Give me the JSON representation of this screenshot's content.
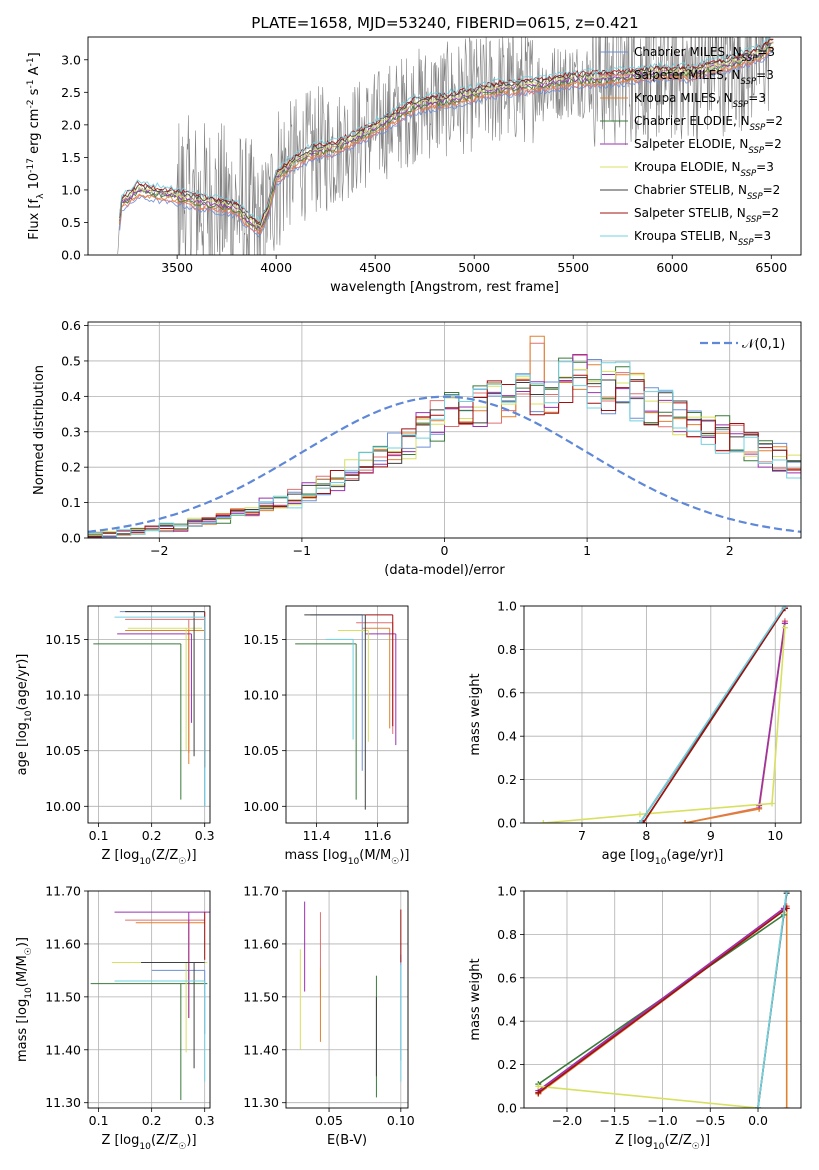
{
  "title": "PLATE=1658, MJD=53240, FIBERID=0615, z=0.421",
  "models": [
    {
      "name": "Chabrier MILES, N$_{SSP}$=3",
      "label": "Chabrier MILES, N",
      "sub": "SSP",
      "tail": "=3",
      "color": "#6b8fd6"
    },
    {
      "name": "Salpeter MILES, N$_{SSP}$=3",
      "label": "Salpeter MILES, N",
      "sub": "SSP",
      "tail": "=3",
      "color": "#e07070"
    },
    {
      "name": "Kroupa MILES, N$_{SSP}$=3",
      "label": "Kroupa MILES, N",
      "sub": "SSP",
      "tail": "=3",
      "color": "#e08030"
    },
    {
      "name": "Chabrier ELODIE, N$_{SSP}$=2",
      "label": "Chabrier ELODIE, N",
      "sub": "SSP",
      "tail": "=2",
      "color": "#3a7a3a"
    },
    {
      "name": "Salpeter ELODIE, N$_{SSP}$=2",
      "label": "Salpeter ELODIE, N",
      "sub": "SSP",
      "tail": "=2",
      "color": "#9b30b0"
    },
    {
      "name": "Kroupa ELODIE, N$_{SSP}$=3",
      "label": "Kroupa ELODIE, N",
      "sub": "SSP",
      "tail": "=3",
      "color": "#d8e060"
    },
    {
      "name": "Chabrier STELIB, N$_{SSP}$=2",
      "label": "Chabrier STELIB, N",
      "sub": "SSP",
      "tail": "=2",
      "color": "#404040"
    },
    {
      "name": "Salpeter STELIB, N$_{SSP}$=2",
      "label": "Salpeter STELIB, N",
      "sub": "SSP",
      "tail": "=2",
      "color": "#a01010"
    },
    {
      "name": "Kroupa STELIB, N$_{SSP}$=3",
      "label": "Kroupa STELIB, N",
      "sub": "SSP",
      "tail": "=3",
      "color": "#70d0e0"
    }
  ],
  "chart_data": [
    {
      "id": "spectrum",
      "type": "line",
      "xlabel": "wavelength [Angstrom, rest frame]",
      "ylabel": "Flux [f$_\\lambda$ 10$^{-17}$ erg cm$^{-2}$ s$^{-1}$ A$^{-1}$]",
      "xlim": [
        3050,
        6650
      ],
      "ylim": [
        0,
        3.35
      ],
      "xticks": [
        3500,
        4000,
        4500,
        5000,
        5500,
        6000,
        6500
      ],
      "yticks": [
        0.0,
        0.5,
        1.0,
        1.5,
        2.0,
        2.5,
        3.0
      ],
      "data_color": "#808080",
      "data_range": [
        3200,
        6500
      ],
      "continuum": [
        [
          3200,
          0.0
        ],
        [
          3215,
          0.8
        ],
        [
          3260,
          0.88
        ],
        [
          3300,
          1.0
        ],
        [
          3400,
          0.95
        ],
        [
          3500,
          0.9
        ],
        [
          3600,
          0.82
        ],
        [
          3700,
          0.78
        ],
        [
          3800,
          0.72
        ],
        [
          3850,
          0.55
        ],
        [
          3920,
          0.42
        ],
        [
          3960,
          0.7
        ],
        [
          4000,
          1.2
        ],
        [
          4100,
          1.45
        ],
        [
          4200,
          1.6
        ],
        [
          4300,
          1.65
        ],
        [
          4500,
          1.95
        ],
        [
          4700,
          2.3
        ],
        [
          4900,
          2.4
        ],
        [
          5100,
          2.55
        ],
        [
          5300,
          2.6
        ],
        [
          5500,
          2.7
        ],
        [
          5700,
          2.72
        ],
        [
          5900,
          2.8
        ],
        [
          6100,
          2.8
        ],
        [
          6300,
          2.95
        ],
        [
          6450,
          3.1
        ],
        [
          6500,
          3.25
        ]
      ],
      "grid": false
    },
    {
      "id": "residuals",
      "type": "histogram",
      "xlabel": "(data-model)/error",
      "ylabel": "Normed distribution",
      "xlim": [
        -2.5,
        2.5
      ],
      "ylim": [
        0,
        0.61
      ],
      "xticks": [
        -2,
        -1,
        0,
        1,
        2
      ],
      "yticks": [
        0.0,
        0.1,
        0.2,
        0.3,
        0.4,
        0.5,
        0.6
      ],
      "bin_width": 0.1,
      "bin_start": -2.5,
      "reference": {
        "label": "$\\mathcal{N}(0,1)$",
        "mu": 0,
        "sigma": 1
      },
      "base_hist": [
        0.01,
        0.01,
        0.015,
        0.02,
        0.025,
        0.03,
        0.035,
        0.04,
        0.05,
        0.06,
        0.07,
        0.08,
        0.09,
        0.1,
        0.11,
        0.13,
        0.15,
        0.16,
        0.19,
        0.21,
        0.24,
        0.26,
        0.28,
        0.31,
        0.33,
        0.35,
        0.37,
        0.38,
        0.39,
        0.4,
        0.41,
        0.42,
        0.43,
        0.44,
        0.45,
        0.44,
        0.43,
        0.42,
        0.4,
        0.38,
        0.36,
        0.34,
        0.33,
        0.31,
        0.3,
        0.28,
        0.26,
        0.24,
        0.22,
        0.2,
        0.18,
        0.16,
        0.14,
        0.12,
        0.11,
        0.1,
        0.09,
        0.08,
        0.07,
        0.06,
        0.05,
        0.04,
        0.035,
        0.03,
        0.025,
        0.02,
        0.015,
        0.01,
        0.01,
        0.005
      ],
      "grid": true
    },
    {
      "id": "age_vs_Z",
      "type": "errorbar",
      "xlabel": "Z [log$_{10}$(Z/Z$_\\odot$)]",
      "ylabel": "age  [log$_{10}$(age/yr)]",
      "xlim": [
        0.08,
        0.31
      ],
      "ylim": [
        9.985,
        10.18
      ],
      "xticks": [
        0.1,
        0.2,
        0.3
      ],
      "yticks": [
        10.0,
        10.05,
        10.1,
        10.15
      ],
      "points": [
        {
          "x": 0.3,
          "y": 10.175,
          "xerr": [
            0.16,
            0.0
          ],
          "yerr": [
            0.175,
            0.0
          ]
        },
        {
          "x": 0.27,
          "y": 10.168,
          "xerr": [
            0.12,
            0.03
          ],
          "yerr": [
            0.12,
            0.0
          ]
        },
        {
          "x": 0.27,
          "y": 10.158,
          "xerr": [
            0.12,
            0.03
          ],
          "yerr": [
            0.12,
            0.0
          ]
        },
        {
          "x": 0.255,
          "y": 10.146,
          "xerr": [
            0.165,
            0.0
          ],
          "yerr": [
            0.14,
            0.0
          ]
        },
        {
          "x": 0.275,
          "y": 10.155,
          "xerr": [
            0.14,
            0.0
          ],
          "yerr": [
            0.08,
            0.0
          ]
        },
        {
          "x": 0.265,
          "y": 10.16,
          "xerr": [
            0.11,
            0.03
          ],
          "yerr": [
            0.11,
            0.0
          ]
        },
        {
          "x": 0.28,
          "y": 10.175,
          "xerr": [
            0.13,
            0.02
          ],
          "yerr": [
            0.13,
            0.0
          ]
        },
        {
          "x": 0.3,
          "y": 10.175,
          "xerr": [
            0.0,
            0.0
          ],
          "yerr": [
            0.14,
            0.0
          ]
        },
        {
          "x": 0.3,
          "y": 10.17,
          "xerr": [
            0.17,
            0.0
          ],
          "yerr": [
            0.17,
            0.0
          ]
        }
      ],
      "grid": true
    },
    {
      "id": "age_vs_mass",
      "type": "errorbar",
      "xlabel": "mass [log$_{10}$(M/M$_\\odot$)]",
      "ylabel": "",
      "xlim": [
        11.3,
        11.7
      ],
      "ylim": [
        9.985,
        10.18
      ],
      "xticks": [
        11.4,
        11.6
      ],
      "yticks": [
        10.0,
        10.05,
        10.1,
        10.15
      ],
      "points": [
        {
          "x": 11.55,
          "y": 10.172,
          "xerr": [
            0.17,
            0.0
          ],
          "yerr": [
            0.14,
            0.0
          ]
        },
        {
          "x": 11.65,
          "y": 10.165,
          "xerr": [
            0.12,
            0.0
          ],
          "yerr": [
            0.1,
            0.0
          ]
        },
        {
          "x": 11.64,
          "y": 10.16,
          "xerr": [
            0.09,
            0.0
          ],
          "yerr": [
            0.09,
            0.0
          ]
        },
        {
          "x": 11.53,
          "y": 10.146,
          "xerr": [
            0.2,
            0.0
          ],
          "yerr": [
            0.14,
            0.0
          ]
        },
        {
          "x": 11.66,
          "y": 10.155,
          "xerr": [
            0.1,
            0.0
          ],
          "yerr": [
            0.1,
            0.0
          ]
        },
        {
          "x": 11.57,
          "y": 10.158,
          "xerr": [
            0.1,
            0.0
          ],
          "yerr": [
            0.1,
            0.0
          ]
        },
        {
          "x": 11.56,
          "y": 10.172,
          "xerr": [
            0.2,
            0.0
          ],
          "yerr": [
            0.175,
            0.0
          ]
        },
        {
          "x": 11.65,
          "y": 10.172,
          "xerr": [
            0.09,
            0.0
          ],
          "yerr": [
            0.1,
            0.0
          ]
        },
        {
          "x": 11.52,
          "y": 10.15,
          "xerr": [
            0.09,
            0.0
          ],
          "yerr": [
            0.09,
            0.0
          ]
        }
      ],
      "grid": true
    },
    {
      "id": "weight_vs_age",
      "type": "line",
      "xlabel": "age  [log$_{10}$(age/yr)]",
      "ylabel": "mass weight",
      "xlim": [
        6.1,
        10.4
      ],
      "ylim": [
        0,
        1.0
      ],
      "xticks": [
        7,
        8,
        9,
        10
      ],
      "yticks": [
        0.0,
        0.2,
        0.4,
        0.6,
        0.8,
        1.0
      ],
      "series": [
        {
          "x": [
            7.9,
            10.15
          ],
          "y": [
            0.0,
            1.0
          ]
        },
        {
          "x": [
            8.6,
            9.75,
            10.15
          ],
          "y": [
            0.0,
            0.07,
            0.93
          ]
        },
        {
          "x": [
            8.6,
            9.75,
            10.15
          ],
          "y": [
            0.0,
            0.065,
            0.92
          ]
        },
        {
          "x": [
            7.95,
            10.15
          ],
          "y": [
            0.0,
            0.99
          ]
        },
        {
          "x": [
            9.75,
            10.15
          ],
          "y": [
            0.08,
            0.92
          ]
        },
        {
          "x": [
            6.4,
            7.9,
            9.95,
            10.15
          ],
          "y": [
            0.0,
            0.04,
            0.09,
            0.9
          ]
        },
        {
          "x": [
            7.9,
            10.15
          ],
          "y": [
            0.0,
            0.99
          ]
        },
        {
          "x": [
            7.95,
            10.15
          ],
          "y": [
            0.0,
            0.99
          ]
        },
        {
          "x": [
            7.9,
            10.15
          ],
          "y": [
            0.0,
            1.0
          ]
        }
      ],
      "grid": true
    },
    {
      "id": "mass_vs_Z",
      "type": "errorbar",
      "xlabel": "Z [log$_{10}$(Z/Z$_\\odot$)]",
      "ylabel": "mass [log$_{10}$(M/M$_\\odot$)]",
      "xlim": [
        0.08,
        0.31
      ],
      "ylim": [
        11.29,
        11.7
      ],
      "xticks": [
        0.1,
        0.2,
        0.3
      ],
      "yticks": [
        11.3,
        11.4,
        11.5,
        11.6,
        11.7
      ],
      "points": [
        {
          "x": 0.3,
          "y": 11.55,
          "xerr": [
            0.1,
            0.0
          ],
          "yerr": [
            0.12,
            0.0
          ]
        },
        {
          "x": 0.27,
          "y": 11.645,
          "xerr": [
            0.12,
            0.03
          ],
          "yerr": [
            0.12,
            0.0
          ]
        },
        {
          "x": 0.27,
          "y": 11.64,
          "xerr": [
            0.1,
            0.03
          ],
          "yerr": [
            0.18,
            0.0
          ]
        },
        {
          "x": 0.255,
          "y": 11.525,
          "xerr": [
            0.17,
            0.05
          ],
          "yerr": [
            0.22,
            0.0
          ]
        },
        {
          "x": 0.27,
          "y": 11.66,
          "xerr": [
            0.14,
            0.04
          ],
          "yerr": [
            0.2,
            0.0
          ]
        },
        {
          "x": 0.265,
          "y": 11.565,
          "xerr": [
            0.14,
            0.04
          ],
          "yerr": [
            0.17,
            0.0
          ]
        },
        {
          "x": 0.28,
          "y": 11.565,
          "xerr": [
            0.1,
            0.02
          ],
          "yerr": [
            0.2,
            0.0
          ]
        },
        {
          "x": 0.3,
          "y": 11.66,
          "xerr": [
            0.0,
            0.0
          ],
          "yerr": [
            0.09,
            0.0
          ]
        },
        {
          "x": 0.3,
          "y": 11.53,
          "xerr": [
            0.17,
            0.0
          ],
          "yerr": [
            0.19,
            0.0
          ]
        }
      ],
      "grid": true
    },
    {
      "id": "mass_vs_ebv",
      "type": "errorbar",
      "xlabel": "E(B-V)",
      "ylabel": "",
      "xlim": [
        0.02,
        0.105
      ],
      "ylim": [
        11.29,
        11.7
      ],
      "xticks": [
        0.05,
        0.1
      ],
      "yticks": [
        11.3,
        11.4,
        11.5,
        11.6,
        11.7
      ],
      "points": [
        {
          "x": 0.1,
          "y": 11.58,
          "xerr": [
            0.0,
            0.0
          ],
          "yerr": [
            0.2,
            0.0
          ]
        },
        {
          "x": 0.044,
          "y": 11.66,
          "xerr": [
            0.0,
            0.0
          ],
          "yerr": [
            0.16,
            0.0
          ]
        },
        {
          "x": 0.044,
          "y": 11.555,
          "xerr": [
            0.0,
            0.0
          ],
          "yerr": [
            0.14,
            0.0
          ]
        },
        {
          "x": 0.083,
          "y": 11.54,
          "xerr": [
            0.0,
            0.0
          ],
          "yerr": [
            0.23,
            0.0
          ]
        },
        {
          "x": 0.033,
          "y": 11.68,
          "xerr": [
            0.0,
            0.0
          ],
          "yerr": [
            0.17,
            0.0
          ]
        },
        {
          "x": 0.03,
          "y": 11.59,
          "xerr": [
            0.0,
            0.0
          ],
          "yerr": [
            0.19,
            0.0
          ]
        },
        {
          "x": 0.083,
          "y": 11.5,
          "xerr": [
            0.0,
            0.0
          ],
          "yerr": [
            0.15,
            0.0
          ]
        },
        {
          "x": 0.1,
          "y": 11.665,
          "xerr": [
            0.0,
            0.0
          ],
          "yerr": [
            0.1,
            0.0
          ]
        },
        {
          "x": 0.1,
          "y": 11.56,
          "xerr": [
            0.0,
            0.0
          ],
          "yerr": [
            0.22,
            0.0
          ]
        }
      ],
      "grid": true
    },
    {
      "id": "weight_vs_Z",
      "type": "line",
      "xlabel": "Z [log$_{10}$(Z/Z$_\\odot$)]",
      "ylabel": "mass weight",
      "xlim": [
        -2.45,
        0.45
      ],
      "ylim": [
        0,
        1.0
      ],
      "xticks": [
        -2.0,
        -1.5,
        -1.0,
        -0.5,
        0.0
      ],
      "yticks": [
        0.0,
        0.2,
        0.4,
        0.6,
        0.8,
        1.0
      ],
      "series": [
        {
          "x": [
            0.0,
            0.3
          ],
          "y": [
            0.0,
            1.0
          ]
        },
        {
          "x": [
            -2.3,
            0.3
          ],
          "y": [
            0.07,
            0.93
          ]
        },
        {
          "x": [
            -2.3,
            0.3,
            0.3
          ],
          "y": [
            0.065,
            0.92,
            0.0
          ]
        },
        {
          "x": [
            -2.3,
            0.27
          ],
          "y": [
            0.11,
            0.89
          ]
        },
        {
          "x": [
            -2.3,
            0.27
          ],
          "y": [
            0.08,
            0.92
          ]
        },
        {
          "x": [
            -2.3,
            0.0,
            0.27
          ],
          "y": [
            0.1,
            0.0,
            0.9
          ]
        },
        {
          "x": [
            0.0,
            0.3
          ],
          "y": [
            0.0,
            0.99
          ]
        },
        {
          "x": [
            -2.3,
            0.3
          ],
          "y": [
            0.07,
            0.92
          ]
        },
        {
          "x": [
            0.0,
            0.3
          ],
          "y": [
            0.0,
            1.0
          ]
        }
      ],
      "grid": true
    }
  ]
}
